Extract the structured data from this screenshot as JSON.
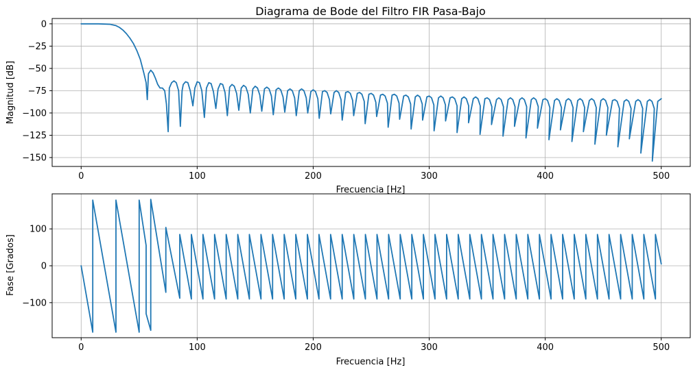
{
  "colors": {
    "series": "#1f77b4"
  },
  "chart_data": [
    {
      "type": "line",
      "title": "Diagrama de Bode del Filtro FIR Pasa-Bajo",
      "xlabel": "Frecuencia [Hz]",
      "ylabel": "Magnitud [dB]",
      "xlim": [
        -25,
        525
      ],
      "ylim": [
        -160,
        6
      ],
      "xticks": [
        0,
        100,
        200,
        300,
        400,
        500
      ],
      "yticks": [
        0,
        -25,
        -50,
        -75,
        -100,
        -125,
        -150
      ],
      "grid": true,
      "series": [
        {
          "x": [
            0,
            15,
            25,
            30,
            33,
            36,
            39,
            42,
            45,
            48,
            51,
            54,
            56,
            57,
            58,
            60,
            62,
            64,
            66,
            68,
            70,
            72,
            73.5,
            75,
            76,
            78,
            80,
            82,
            84,
            85.5,
            87,
            88,
            90,
            92,
            94,
            96.3,
            98,
            100,
            102,
            104,
            106.2,
            108,
            110,
            112,
            114,
            116.1,
            118,
            120,
            122,
            124,
            126,
            128,
            130,
            132,
            134,
            135.9,
            138,
            140,
            142,
            144,
            145.8,
            148,
            150,
            152,
            154,
            155.7,
            158,
            160,
            162,
            164,
            165.6,
            168,
            170,
            172,
            174,
            175.5,
            178,
            180,
            182,
            184,
            185.4,
            188,
            190,
            192,
            194,
            195.3,
            198,
            200,
            202,
            204,
            205.2,
            208,
            210,
            212,
            214,
            215.1,
            218,
            220,
            222,
            224,
            225,
            228,
            230,
            232,
            234,
            234.9,
            238,
            240,
            242,
            244,
            244.8,
            248,
            250,
            252,
            254,
            254.7,
            258,
            260,
            262,
            264,
            264.6,
            268,
            270,
            272,
            274,
            274.5,
            278,
            280,
            282,
            284,
            284.4,
            288,
            290,
            292,
            294,
            294.3,
            298,
            300,
            302,
            304,
            304.2,
            308,
            310,
            312,
            314,
            314.1,
            318,
            320,
            322,
            324,
            324,
            328,
            330,
            332,
            334,
            333.9,
            338,
            340,
            342,
            344,
            343.8,
            348,
            350,
            352,
            354,
            353.7,
            358,
            360,
            362,
            364,
            363.6,
            368,
            370,
            372,
            374,
            373.5,
            378,
            380,
            382,
            384,
            383.4,
            388,
            390,
            392,
            394,
            393.3,
            398,
            400,
            402,
            404,
            403.2,
            408,
            410,
            412,
            414,
            413.1,
            418,
            420,
            422,
            424,
            423,
            428,
            430,
            432,
            434,
            432.9,
            438,
            440,
            442,
            444,
            442.8,
            448,
            450,
            452,
            454,
            452.7,
            458,
            460,
            462,
            464,
            462.6,
            468,
            470,
            472,
            474,
            472.5,
            478,
            480,
            482,
            484,
            482.4,
            488,
            490,
            492,
            494,
            492.3,
            497,
            500
          ],
          "values": [
            0,
            0,
            -0.5,
            -2,
            -4,
            -7,
            -11,
            -16,
            -22,
            -30,
            -40,
            -55,
            -66,
            -85,
            -56,
            -52,
            -55,
            -61,
            -68,
            -72,
            -72,
            -75,
            -90,
            -121,
            -72,
            -66,
            -64,
            -66,
            -75,
            -115,
            -75,
            -68,
            -65,
            -66,
            -75,
            -92,
            -72,
            -65,
            -66,
            -75,
            -105,
            -72,
            -66,
            -67,
            -76,
            -95,
            -73,
            -67,
            -68,
            -77,
            -103,
            -71,
            -68,
            -70,
            -78,
            -97,
            -72,
            -69,
            -71,
            -79,
            -100,
            -73,
            -70,
            -72,
            -80,
            -98,
            -73,
            -71,
            -73,
            -81,
            -102,
            -74,
            -72,
            -74,
            -82,
            -99,
            -75,
            -73,
            -75,
            -83,
            -103,
            -75,
            -73,
            -75,
            -83,
            -100,
            -76,
            -74,
            -76,
            -84,
            -106,
            -76,
            -75,
            -77,
            -85,
            -101,
            -77,
            -75,
            -77,
            -85,
            -108,
            -77,
            -76,
            -78,
            -86,
            -103,
            -78,
            -77,
            -79,
            -87,
            -112,
            -79,
            -78,
            -80,
            -88,
            -104,
            -80,
            -79,
            -81,
            -89,
            -116,
            -80,
            -79,
            -81,
            -89,
            -107,
            -81,
            -80,
            -82,
            -90,
            -118,
            -82,
            -80,
            -82,
            -90,
            -108,
            -82,
            -81,
            -83,
            -91,
            -120,
            -83,
            -81,
            -83,
            -91,
            -109,
            -83,
            -82,
            -84,
            -92,
            -122,
            -84,
            -82,
            -84,
            -92,
            -111,
            -84,
            -82,
            -84,
            -92,
            -124,
            -84,
            -83,
            -85,
            -93,
            -113,
            -85,
            -83,
            -85,
            -93,
            -126,
            -85,
            -83,
            -85,
            -93,
            -115,
            -85,
            -83,
            -85,
            -93,
            -128,
            -85,
            -83,
            -85,
            -93,
            -117,
            -85,
            -84,
            -86,
            -94,
            -130,
            -86,
            -84,
            -86,
            -94,
            -119,
            -86,
            -84,
            -86,
            -94,
            -132,
            -86,
            -84,
            -86,
            -94,
            -121,
            -86,
            -84,
            -86,
            -94,
            -135,
            -86,
            -84,
            -86,
            -94,
            -125,
            -86,
            -85,
            -87,
            -95,
            -138,
            -87,
            -85,
            -87,
            -95,
            -129,
            -87,
            -85,
            -87,
            -95,
            -145,
            -87,
            -85,
            -87,
            -95,
            -154,
            -87,
            -84
          ]
        }
      ]
    },
    {
      "type": "line",
      "xlabel": "Frecuencia [Hz]",
      "ylabel": "Fase [Grados]",
      "xlim": [
        -25,
        525
      ],
      "ylim": [
        -195,
        195
      ],
      "xticks": [
        0,
        100,
        200,
        300,
        400,
        500
      ],
      "yticks": [
        100,
        0,
        -100
      ],
      "grid": true,
      "series": [
        {
          "x": [
            0,
            10,
            10,
            30,
            30,
            50,
            50,
            56,
            56,
            60,
            60,
            73,
            73,
            85,
            85,
            95,
            95,
            105,
            105,
            115,
            115,
            125,
            125,
            135,
            135,
            145,
            145,
            155,
            155,
            165,
            165,
            175,
            175,
            185,
            185,
            195,
            195,
            205,
            205,
            215,
            215,
            225,
            225,
            235,
            235,
            245,
            245,
            255,
            255,
            265,
            265,
            275,
            275,
            285,
            285,
            295,
            295,
            305,
            305,
            315,
            315,
            325,
            325,
            335,
            335,
            345,
            345,
            355,
            355,
            365,
            365,
            375,
            375,
            385,
            385,
            395,
            395,
            405,
            405,
            415,
            415,
            425,
            425,
            435,
            435,
            445,
            445,
            455,
            455,
            465,
            465,
            475,
            475,
            485,
            485,
            495,
            495,
            500
          ],
          "values": [
            0,
            -180,
            178,
            -180,
            178,
            -180,
            178,
            55,
            -130,
            -175,
            180,
            -72,
            104,
            -88,
            85,
            -90,
            85,
            -90,
            85,
            -90,
            85,
            -90,
            85,
            -90,
            85,
            -90,
            85,
            -90,
            85,
            -90,
            85,
            -90,
            85,
            -90,
            85,
            -90,
            85,
            -90,
            85,
            -90,
            85,
            -90,
            85,
            -90,
            85,
            -90,
            85,
            -90,
            85,
            -90,
            85,
            -90,
            85,
            -90,
            85,
            -90,
            85,
            -90,
            85,
            -90,
            85,
            -90,
            85,
            -90,
            85,
            -90,
            85,
            -90,
            85,
            -90,
            85,
            -90,
            85,
            -90,
            85,
            -90,
            85,
            -90,
            85,
            -90,
            85,
            -90,
            85,
            -90,
            85,
            -90,
            85,
            -90,
            85,
            -90,
            85,
            -90,
            85,
            -90,
            85,
            -90,
            85,
            5
          ]
        }
      ]
    }
  ]
}
